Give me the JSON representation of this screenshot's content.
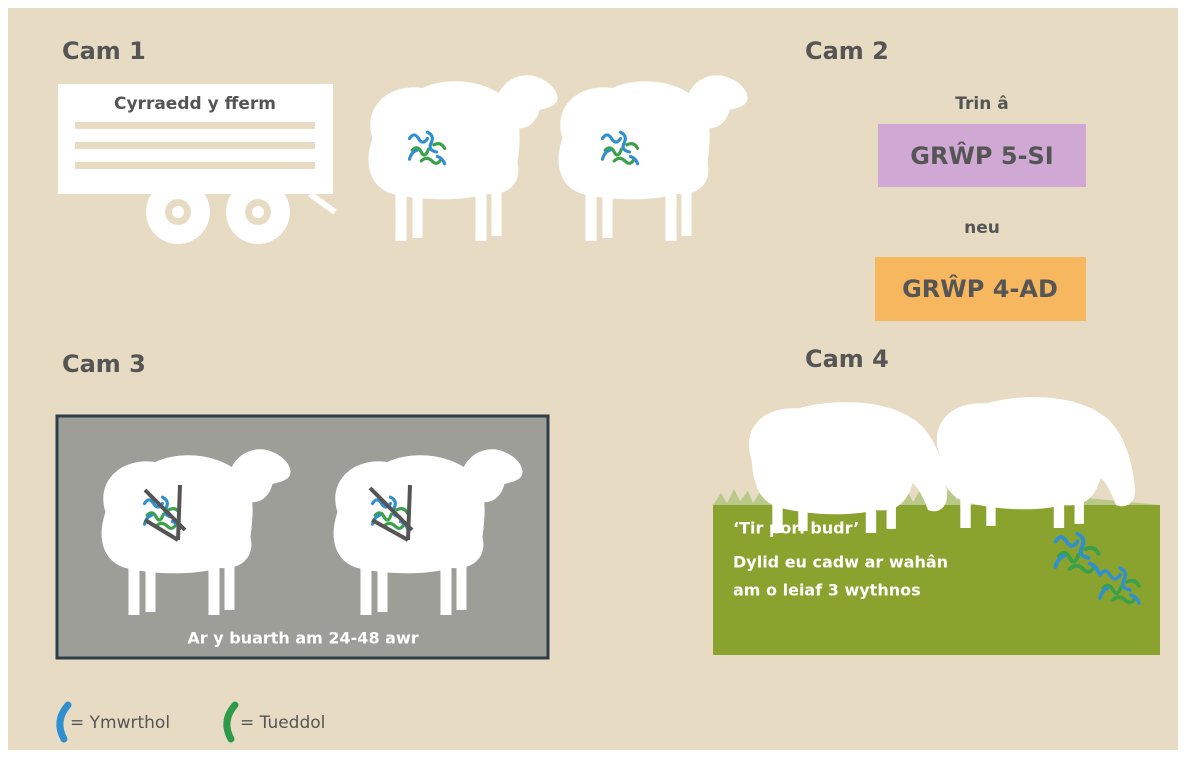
{
  "steps": [
    {
      "heading": "Cam 1",
      "caption": "Cyrraedd y fferm"
    },
    {
      "heading": "Cam 2",
      "intro": "Trin â",
      "options": [
        "GRŴP 5-SI",
        "GRŴP 4-AD"
      ],
      "separator": "neu"
    },
    {
      "heading": "Cam 3",
      "caption": "Ar y buarth am 24-48 awr"
    },
    {
      "heading": "Cam 4",
      "lines": [
        "‘Tir pori budr’",
        "Dylid eu cadw ar wahân",
        "am o leiaf 3 wythnos"
      ]
    }
  ],
  "legend": [
    "= Ymwrthol",
    "= Tueddol"
  ]
}
